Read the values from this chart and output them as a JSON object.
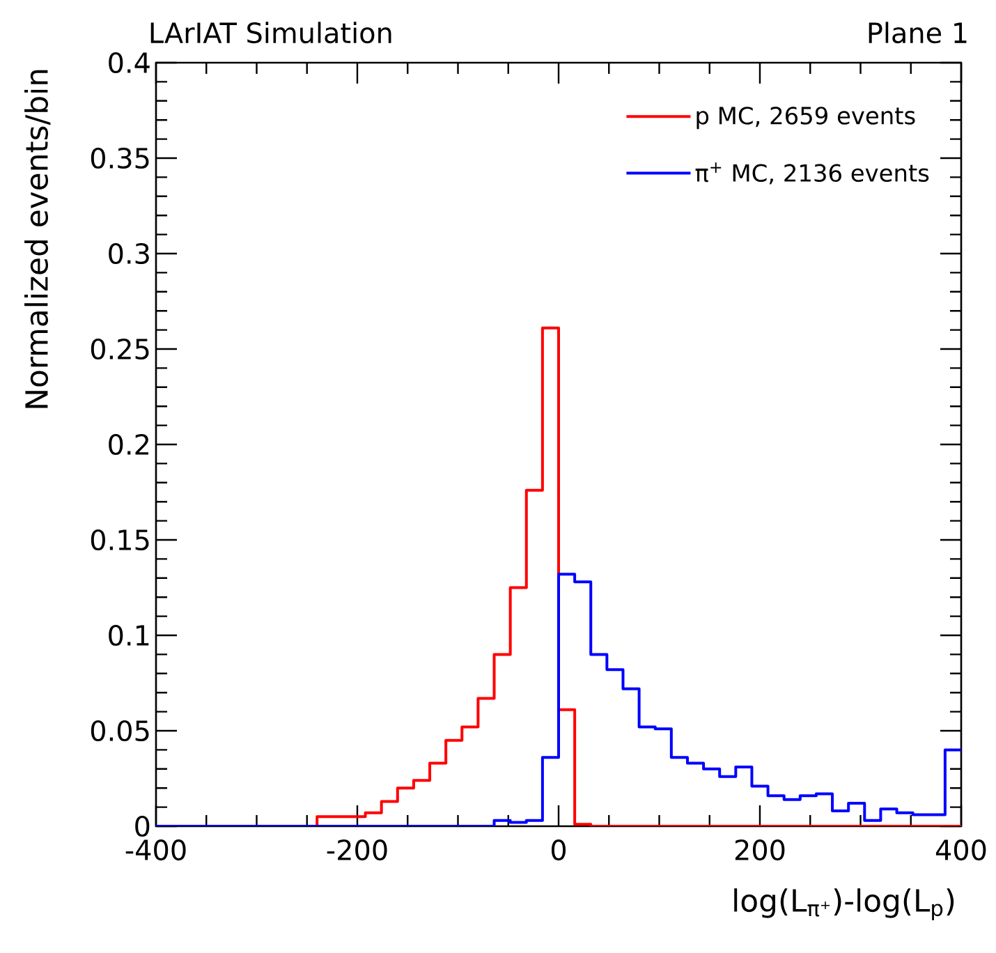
{
  "chart_data": {
    "type": "histogram",
    "title": "LArIAT Simulation",
    "subtitle": "Plane 1",
    "xlabel": "log(L$_{π⁺}$)-log(L$_{p}$)",
    "ylabel": "Normalized events/bin",
    "bins": [
      -400,
      -384,
      -368,
      -352,
      -336,
      -320,
      -304,
      -288,
      -272,
      -256,
      -240,
      -224,
      -208,
      -192,
      -176,
      -160,
      -144,
      -128,
      -112,
      -96,
      -80,
      -64,
      -48,
      -32,
      -16,
      0,
      16,
      32,
      48,
      64,
      80,
      96,
      112,
      128,
      144,
      160,
      176,
      192,
      208,
      224,
      240,
      256,
      272,
      288,
      304,
      320,
      336,
      352,
      368,
      384,
      400
    ],
    "series": [
      {
        "name": "p MC, 2659 events",
        "color": "#ff0000",
        "values": [
          0,
          0,
          0,
          0,
          0,
          0,
          0,
          0,
          0,
          0,
          0.005,
          0.005,
          0.005,
          0.007,
          0.013,
          0.02,
          0.024,
          0.033,
          0.045,
          0.052,
          0.067,
          0.09,
          0.125,
          0.176,
          0.261,
          0.061,
          0.001,
          0,
          0,
          0,
          0,
          0,
          0,
          0,
          0,
          0,
          0,
          0,
          0,
          0,
          0,
          0,
          0,
          0,
          0,
          0,
          0,
          0,
          0,
          0
        ]
      },
      {
        "name": "π$^{+}$ MC, 2136 events",
        "color": "#0000ff",
        "values": [
          0,
          0,
          0,
          0,
          0,
          0,
          0,
          0,
          0,
          0,
          0,
          0,
          0,
          0,
          0,
          0,
          0,
          0,
          0,
          0,
          0,
          0.003,
          0.002,
          0.003,
          0.036,
          0.132,
          0.128,
          0.09,
          0.082,
          0.072,
          0.052,
          0.051,
          0.036,
          0.033,
          0.03,
          0.026,
          0.031,
          0.021,
          0.016,
          0.014,
          0.016,
          0.017,
          0.008,
          0.012,
          0.003,
          0.009,
          0.007,
          0.006,
          0.006,
          0.04
        ]
      }
    ],
    "xlim": [
      -400,
      400
    ],
    "ylim": [
      0,
      0.4
    ],
    "xticks": [
      -400,
      -200,
      0,
      200,
      400
    ],
    "yticks": [
      0,
      0.05,
      0.1,
      0.15,
      0.2,
      0.25,
      0.3,
      0.35,
      0.4
    ],
    "grid": false,
    "legend": "top right"
  }
}
